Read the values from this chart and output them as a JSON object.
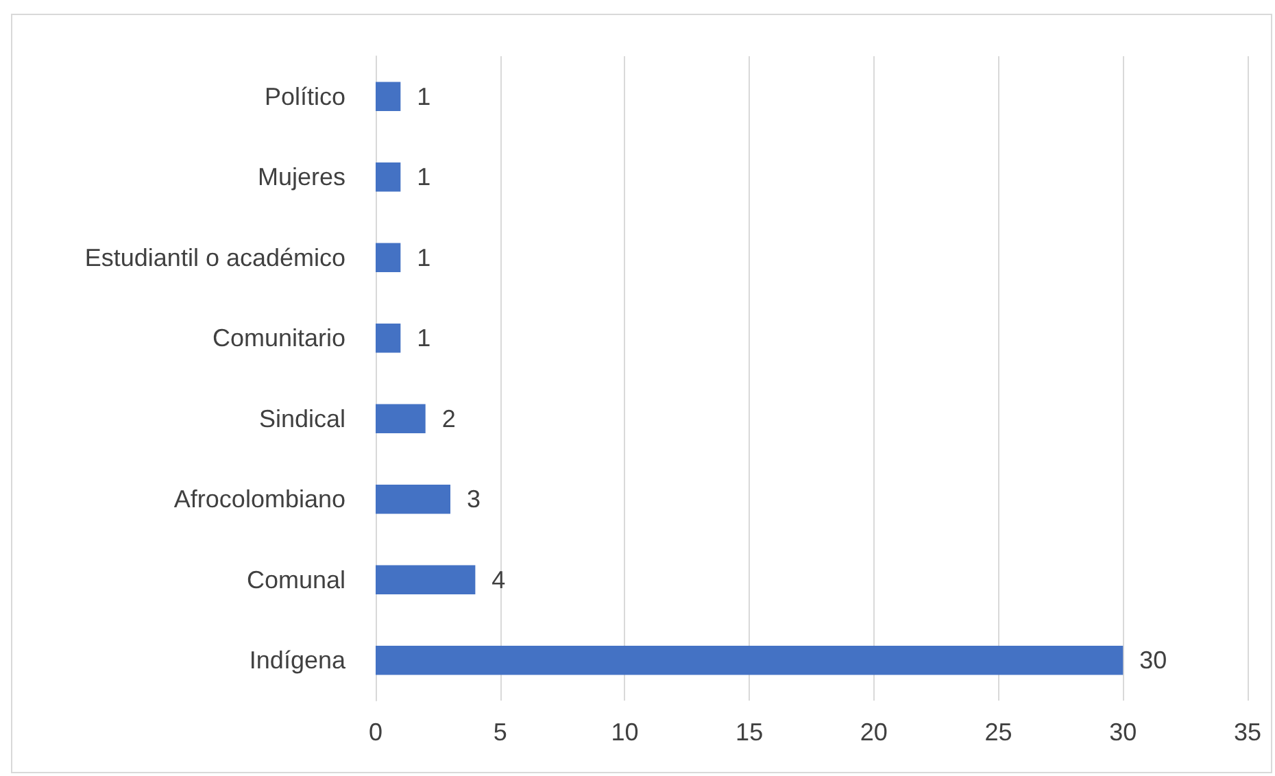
{
  "chart_data": {
    "type": "bar",
    "orientation": "horizontal",
    "categories": [
      "Político",
      "Mujeres",
      "Estudiantil o académico",
      "Comunitario",
      "Sindical",
      "Afrocolombiano",
      "Comunal",
      "Indígena"
    ],
    "values": [
      1,
      1,
      1,
      1,
      2,
      3,
      4,
      30
    ],
    "color": "#4472c4",
    "xlim": [
      0,
      35
    ],
    "xticks": [
      0,
      5,
      10,
      15,
      20,
      25,
      30,
      35
    ],
    "grid": "x",
    "data_labels": true
  }
}
